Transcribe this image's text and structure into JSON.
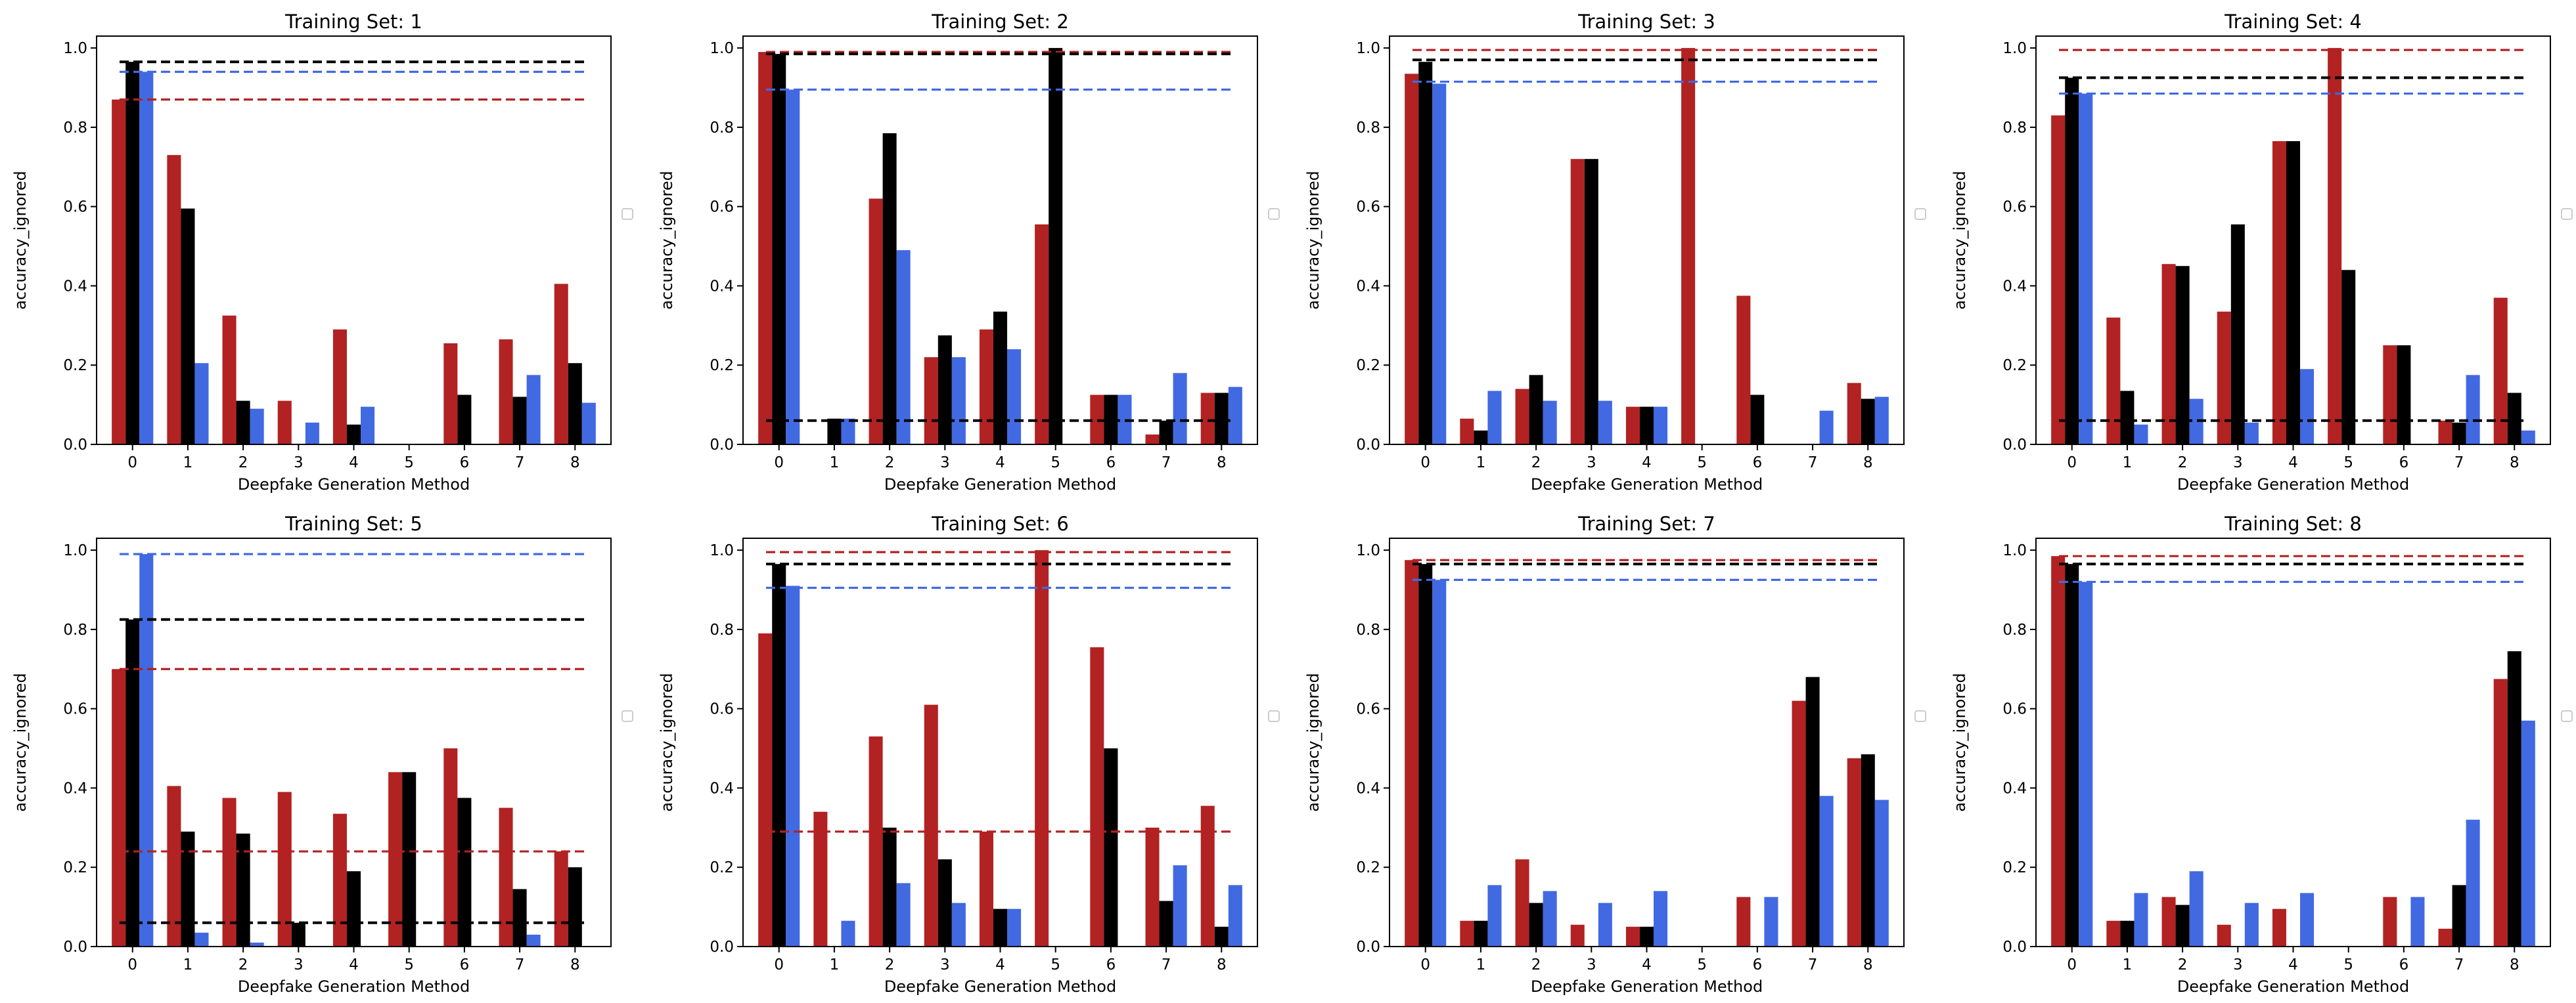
{
  "chart_data": [
    {
      "type": "bar",
      "title": "Training Set: 1",
      "xlabel": "Deepfake Generation Method",
      "ylabel": "accuracy_ignored",
      "categories": [
        "0",
        "1",
        "2",
        "3",
        "4",
        "5",
        "6",
        "7",
        "8"
      ],
      "ylim": [
        0,
        1.03
      ],
      "yticks": [
        "0.0",
        "0.2",
        "0.4",
        "0.6",
        "0.8",
        "1.0"
      ],
      "series": [
        {
          "name": "red",
          "values": [
            0.87,
            0.73,
            0.325,
            0.11,
            0.29,
            0.0,
            0.255,
            0.265,
            0.405
          ]
        },
        {
          "name": "black",
          "values": [
            0.965,
            0.595,
            0.11,
            0.0,
            0.05,
            0.0,
            0.125,
            0.12,
            0.205
          ]
        },
        {
          "name": "blue",
          "values": [
            0.94,
            0.205,
            0.09,
            0.055,
            0.095,
            0.0,
            0.0,
            0.175,
            0.105
          ]
        }
      ],
      "hlines": {
        "red": 0.87,
        "black": 0.965,
        "blue": 0.94
      }
    },
    {
      "type": "bar",
      "title": "Training Set: 2",
      "xlabel": "Deepfake Generation Method",
      "ylabel": "accuracy_ignored",
      "categories": [
        "0",
        "1",
        "2",
        "3",
        "4",
        "5",
        "6",
        "7",
        "8"
      ],
      "ylim": [
        0,
        1.03
      ],
      "yticks": [
        "0.0",
        "0.2",
        "0.4",
        "0.6",
        "0.8",
        "1.0"
      ],
      "series": [
        {
          "name": "red",
          "values": [
            0.99,
            0.0,
            0.62,
            0.22,
            0.29,
            0.555,
            0.125,
            0.025,
            0.13
          ]
        },
        {
          "name": "black",
          "values": [
            0.985,
            0.065,
            0.785,
            0.275,
            0.335,
            1.0,
            0.125,
            0.06,
            0.13
          ]
        },
        {
          "name": "blue",
          "values": [
            0.895,
            0.065,
            0.49,
            0.22,
            0.24,
            0.0,
            0.125,
            0.18,
            0.145
          ]
        }
      ],
      "hlines": {
        "red": 0.99,
        "black": 0.985,
        "blue": 0.895,
        "black2": 0.06
      }
    },
    {
      "type": "bar",
      "title": "Training Set: 3",
      "xlabel": "Deepfake Generation Method",
      "ylabel": "accuracy_ignored",
      "categories": [
        "0",
        "1",
        "2",
        "3",
        "4",
        "5",
        "6",
        "7",
        "8"
      ],
      "ylim": [
        0,
        1.03
      ],
      "yticks": [
        "0.0",
        "0.2",
        "0.4",
        "0.6",
        "0.8",
        "1.0"
      ],
      "series": [
        {
          "name": "red",
          "values": [
            0.935,
            0.065,
            0.14,
            0.72,
            0.095,
            1.0,
            0.375,
            0.0,
            0.155
          ]
        },
        {
          "name": "black",
          "values": [
            0.965,
            0.035,
            0.175,
            0.72,
            0.095,
            0.0,
            0.125,
            0.0,
            0.115
          ]
        },
        {
          "name": "blue",
          "values": [
            0.91,
            0.135,
            0.11,
            0.11,
            0.095,
            0.0,
            0.0,
            0.085,
            0.12
          ]
        }
      ],
      "hlines": {
        "red": 0.995,
        "black": 0.97,
        "blue": 0.915
      }
    },
    {
      "type": "bar",
      "title": "Training Set: 4",
      "xlabel": "Deepfake Generation Method",
      "ylabel": "accuracy_ignored",
      "categories": [
        "0",
        "1",
        "2",
        "3",
        "4",
        "5",
        "6",
        "7",
        "8"
      ],
      "ylim": [
        0,
        1.03
      ],
      "yticks": [
        "0.0",
        "0.2",
        "0.4",
        "0.6",
        "0.8",
        "1.0"
      ],
      "series": [
        {
          "name": "red",
          "values": [
            0.83,
            0.32,
            0.455,
            0.335,
            0.765,
            1.0,
            0.25,
            0.06,
            0.37
          ]
        },
        {
          "name": "black",
          "values": [
            0.925,
            0.135,
            0.45,
            0.555,
            0.765,
            0.44,
            0.25,
            0.055,
            0.13
          ]
        },
        {
          "name": "blue",
          "values": [
            0.885,
            0.05,
            0.115,
            0.055,
            0.19,
            0.0,
            0.0,
            0.175,
            0.035
          ]
        }
      ],
      "hlines": {
        "red": 0.995,
        "black": 0.925,
        "blue": 0.885,
        "black2": 0.06
      }
    },
    {
      "type": "bar",
      "title": "Training Set: 5",
      "xlabel": "Deepfake Generation Method",
      "ylabel": "accuracy_ignored",
      "categories": [
        "0",
        "1",
        "2",
        "3",
        "4",
        "5",
        "6",
        "7",
        "8"
      ],
      "ylim": [
        0,
        1.03
      ],
      "yticks": [
        "0.0",
        "0.2",
        "0.4",
        "0.6",
        "0.8",
        "1.0"
      ],
      "series": [
        {
          "name": "red",
          "values": [
            0.7,
            0.405,
            0.375,
            0.39,
            0.335,
            0.44,
            0.5,
            0.35,
            0.24
          ]
        },
        {
          "name": "black",
          "values": [
            0.825,
            0.29,
            0.285,
            0.06,
            0.19,
            0.44,
            0.375,
            0.145,
            0.2
          ]
        },
        {
          "name": "blue",
          "values": [
            0.99,
            0.035,
            0.01,
            0.0,
            0.0,
            0.0,
            0.0,
            0.03,
            0.0
          ]
        }
      ],
      "hlines": {
        "red": 0.7,
        "black": 0.825,
        "blue": 0.99,
        "red2": 0.24,
        "black2": 0.06
      }
    },
    {
      "type": "bar",
      "title": "Training Set: 6",
      "xlabel": "Deepfake Generation Method",
      "ylabel": "accuracy_ignored",
      "categories": [
        "0",
        "1",
        "2",
        "3",
        "4",
        "5",
        "6",
        "7",
        "8"
      ],
      "ylim": [
        0,
        1.03
      ],
      "yticks": [
        "0.0",
        "0.2",
        "0.4",
        "0.6",
        "0.8",
        "1.0"
      ],
      "series": [
        {
          "name": "red",
          "values": [
            0.79,
            0.34,
            0.53,
            0.61,
            0.29,
            1.0,
            0.755,
            0.3,
            0.355
          ]
        },
        {
          "name": "black",
          "values": [
            0.965,
            0.0,
            0.3,
            0.22,
            0.095,
            0.0,
            0.5,
            0.115,
            0.05
          ]
        },
        {
          "name": "blue",
          "values": [
            0.91,
            0.065,
            0.16,
            0.11,
            0.095,
            0.0,
            0.0,
            0.205,
            0.155
          ]
        }
      ],
      "hlines": {
        "red": 0.995,
        "black": 0.965,
        "blue": 0.905,
        "red2": 0.29
      }
    },
    {
      "type": "bar",
      "title": "Training Set: 7",
      "xlabel": "Deepfake Generation Method",
      "ylabel": "accuracy_ignored",
      "categories": [
        "0",
        "1",
        "2",
        "3",
        "4",
        "5",
        "6",
        "7",
        "8"
      ],
      "ylim": [
        0,
        1.03
      ],
      "yticks": [
        "0.0",
        "0.2",
        "0.4",
        "0.6",
        "0.8",
        "1.0"
      ],
      "series": [
        {
          "name": "red",
          "values": [
            0.975,
            0.065,
            0.22,
            0.055,
            0.05,
            0.0,
            0.125,
            0.62,
            0.475
          ]
        },
        {
          "name": "black",
          "values": [
            0.965,
            0.065,
            0.11,
            0.0,
            0.05,
            0.0,
            0.0,
            0.68,
            0.485
          ]
        },
        {
          "name": "blue",
          "values": [
            0.925,
            0.155,
            0.14,
            0.11,
            0.14,
            0.0,
            0.125,
            0.38,
            0.37
          ]
        }
      ],
      "hlines": {
        "red": 0.975,
        "black": 0.965,
        "blue": 0.925
      }
    },
    {
      "type": "bar",
      "title": "Training Set: 8",
      "xlabel": "Deepfake Generation Method",
      "ylabel": "accuracy_ignored",
      "categories": [
        "0",
        "1",
        "2",
        "3",
        "4",
        "5",
        "6",
        "7",
        "8"
      ],
      "ylim": [
        0,
        1.03
      ],
      "yticks": [
        "0.0",
        "0.2",
        "0.4",
        "0.6",
        "0.8",
        "1.0"
      ],
      "series": [
        {
          "name": "red",
          "values": [
            0.985,
            0.065,
            0.125,
            0.055,
            0.095,
            0.0,
            0.125,
            0.045,
            0.675
          ]
        },
        {
          "name": "black",
          "values": [
            0.965,
            0.065,
            0.105,
            0.0,
            0.0,
            0.0,
            0.0,
            0.155,
            0.745
          ]
        },
        {
          "name": "blue",
          "values": [
            0.92,
            0.135,
            0.19,
            0.11,
            0.135,
            0.0,
            0.125,
            0.32,
            0.57
          ]
        }
      ],
      "hlines": {
        "red": 0.985,
        "black": 0.965,
        "blue": 0.92
      }
    }
  ],
  "colors": {
    "red": "#b22222",
    "black": "#000000",
    "blue": "#4169e1"
  }
}
